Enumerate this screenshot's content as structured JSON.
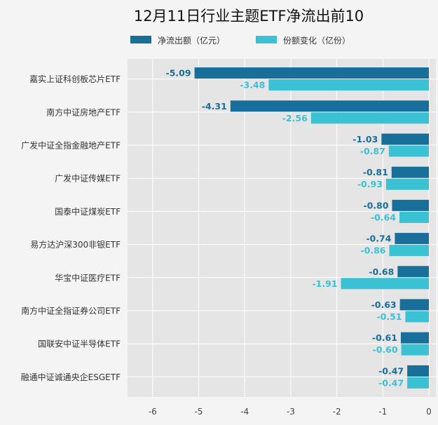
{
  "chart_data": {
    "type": "bar",
    "orientation": "horizontal",
    "title": "12月11日行业主题ETF净流出前10",
    "legend_position": "top",
    "grid": true,
    "xlim": [
      -6.5,
      0
    ],
    "x_ticks": [
      -6,
      -5,
      -4,
      -3,
      -2,
      -1,
      0
    ],
    "categories": [
      "嘉实上证科创板芯片ETF",
      "南方中证房地产ETF",
      "广发中证全指金融地产ETF",
      "广发中证传媒ETF",
      "国泰中证煤炭ETF",
      "易方达沪深300非银ETF",
      "华宝中证医疗ETF",
      "南方中证全指证券公司ETF",
      "国联安中证半导体ETF",
      "融通中证诚通央企ESGETF"
    ],
    "series": [
      {
        "name": "净流出额（亿元）",
        "color": "#176f9a",
        "values": [
          -5.09,
          -4.31,
          -1.03,
          -0.81,
          -0.8,
          -0.74,
          -0.68,
          -0.63,
          -0.61,
          -0.47
        ],
        "labels": [
          "-5.09",
          "-4.31",
          "-1.03",
          "-0.81",
          "-0.80",
          "-0.74",
          "-0.68",
          "-0.63",
          "-0.61",
          "-0.47"
        ]
      },
      {
        "name": "份额变化（亿份）",
        "color": "#3ac1d3",
        "values": [
          -3.48,
          -2.56,
          -0.87,
          -0.93,
          -0.64,
          -0.86,
          -1.91,
          -0.51,
          -0.6,
          -0.47
        ],
        "labels": [
          "-3.48",
          "-2.56",
          "-0.87",
          "-0.93",
          "-0.64",
          "-0.86",
          "-1.91",
          "-0.51",
          "-0.60",
          "-0.47"
        ]
      }
    ]
  },
  "colors": {
    "background": "#f4f4f4",
    "plot_background": "#e5e5e5",
    "grid": "#ffffff",
    "text": "#333333"
  }
}
